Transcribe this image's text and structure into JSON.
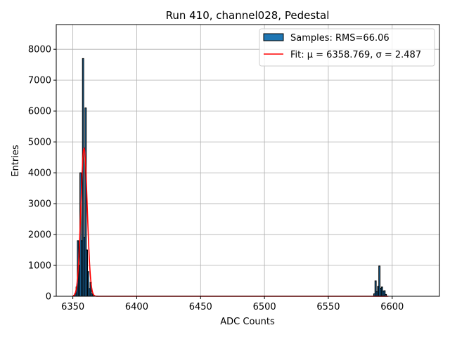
{
  "chart_data": {
    "type": "bar",
    "title": "Run 410, channel028, Pedestal",
    "xlabel": "ADC Counts",
    "ylabel": "Entries",
    "xlim": [
      6337,
      6637
    ],
    "ylim": [
      0,
      8800
    ],
    "xticks": [
      6350,
      6400,
      6450,
      6500,
      6550,
      6600
    ],
    "yticks": [
      0,
      1000,
      2000,
      3000,
      4000,
      5000,
      6000,
      7000,
      8000
    ],
    "grid": true,
    "legend_position": "top-right",
    "bar_color": "#1f77b4",
    "fit_color": "#ff0000",
    "histogram": {
      "name": "Samples: RMS=66.06",
      "bin_width": 1,
      "bins": [
        {
          "x": 6351,
          "y": 30
        },
        {
          "x": 6352,
          "y": 100
        },
        {
          "x": 6353,
          "y": 300
        },
        {
          "x": 6354,
          "y": 1800
        },
        {
          "x": 6355,
          "y": 1000
        },
        {
          "x": 6356,
          "y": 4000
        },
        {
          "x": 6357,
          "y": 1800
        },
        {
          "x": 6358,
          "y": 7700
        },
        {
          "x": 6359,
          "y": 1900
        },
        {
          "x": 6360,
          "y": 6100
        },
        {
          "x": 6361,
          "y": 1500
        },
        {
          "x": 6362,
          "y": 800
        },
        {
          "x": 6363,
          "y": 250
        },
        {
          "x": 6364,
          "y": 450
        },
        {
          "x": 6365,
          "y": 80
        },
        {
          "x": 6366,
          "y": 20
        },
        {
          "x": 6586,
          "y": 80
        },
        {
          "x": 6587,
          "y": 500
        },
        {
          "x": 6588,
          "y": 150
        },
        {
          "x": 6589,
          "y": 320
        },
        {
          "x": 6590,
          "y": 980
        },
        {
          "x": 6591,
          "y": 260
        },
        {
          "x": 6592,
          "y": 300
        },
        {
          "x": 6593,
          "y": 170
        },
        {
          "x": 6594,
          "y": 180
        },
        {
          "x": 6595,
          "y": 60
        }
      ]
    },
    "fit": {
      "name": "Fit: μ = 6358.769, σ = 2.487",
      "mu": 6358.769,
      "sigma": 2.487,
      "amplitude": 4800,
      "x_range": [
        6350,
        6597
      ]
    }
  }
}
